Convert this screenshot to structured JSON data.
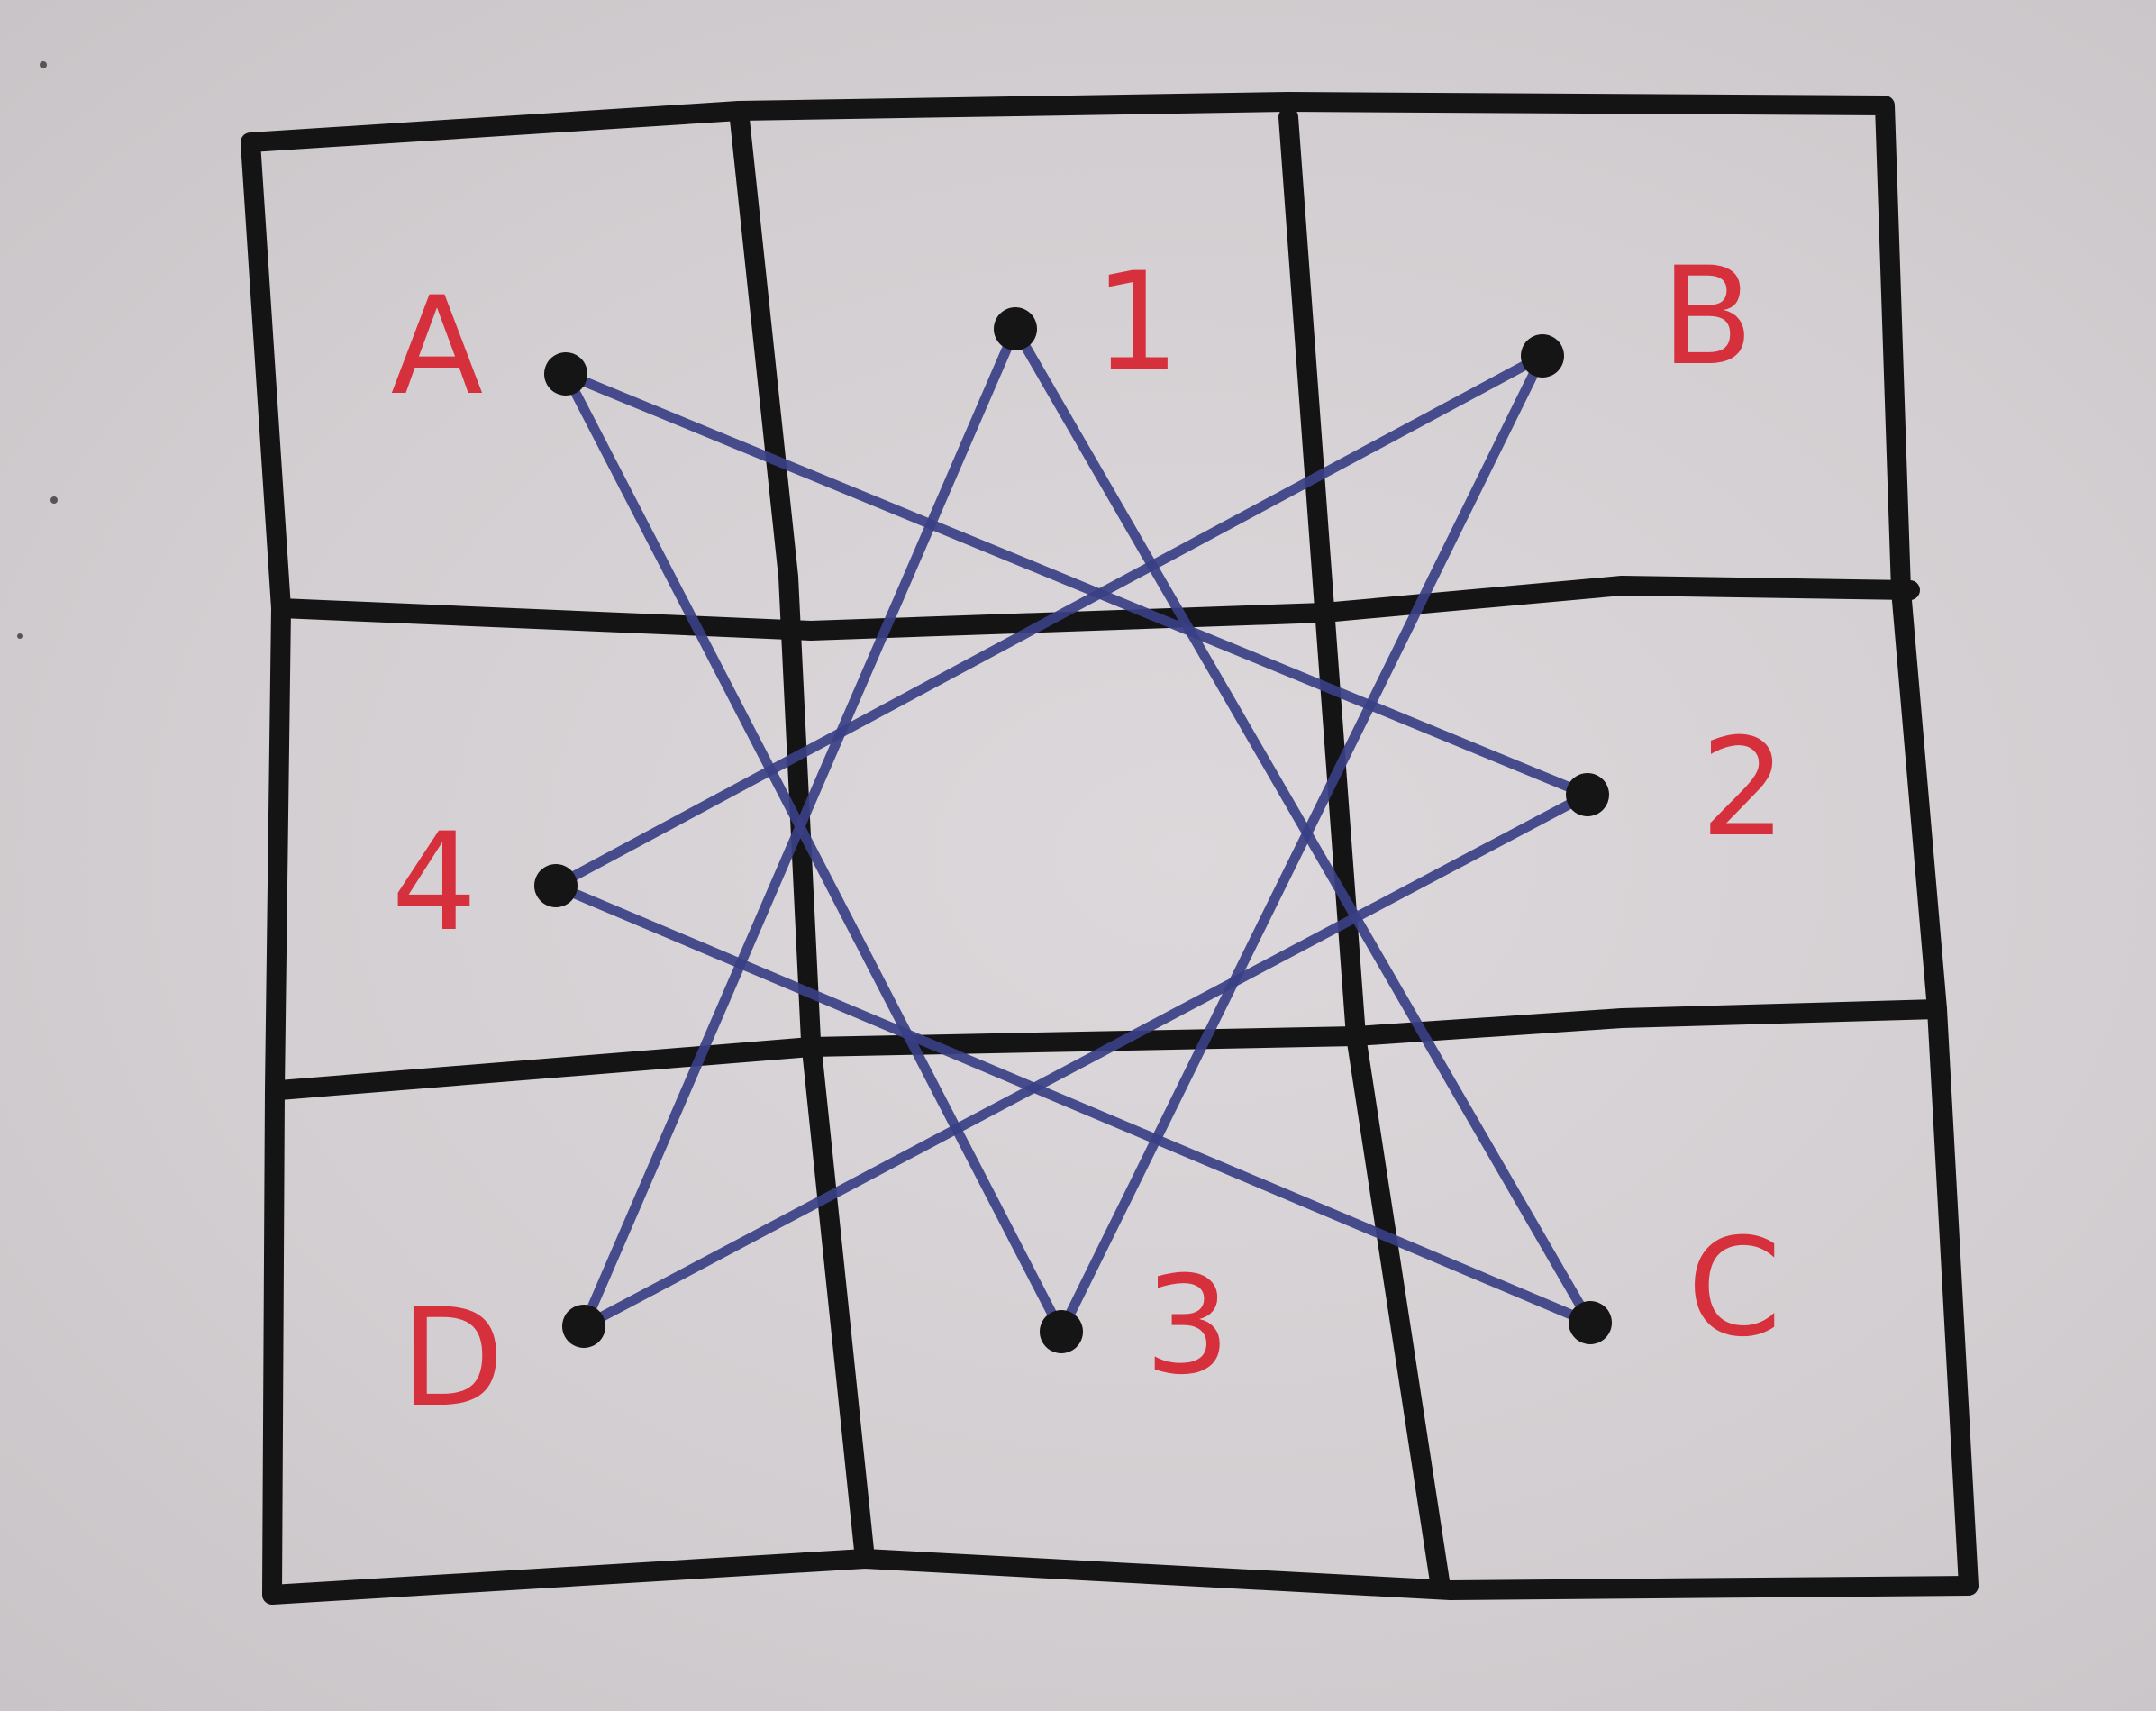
{
  "colors": {
    "grid": "#141414",
    "star": "#3a3f85",
    "labels": "#d6303d",
    "vertices": "#151515"
  },
  "labels": {
    "a": "A",
    "one": "1",
    "b": "B",
    "two": "2",
    "c": "C",
    "three": "3",
    "d": "D",
    "four": "4"
  },
  "star_edges": [
    [
      "A",
      "2"
    ],
    [
      "A",
      "3"
    ],
    [
      "1",
      "D"
    ],
    [
      "1",
      "C"
    ],
    [
      "B",
      "4"
    ],
    [
      "B",
      "3"
    ],
    [
      "2",
      "D"
    ],
    [
      "4",
      "C"
    ]
  ]
}
